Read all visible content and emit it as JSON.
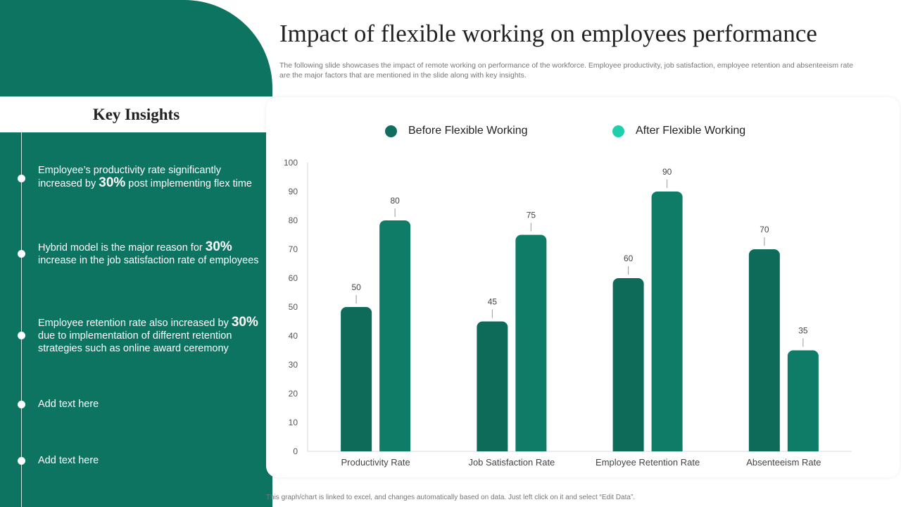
{
  "title": "Impact of flexible working on employees performance",
  "subtitle": "The following slide showcases the impact of remote working on performance of the workforce. Employee productivity, job satisfaction, employee retention and absenteeism rate are the major factors that are mentioned in the slide along with key insights.",
  "insights": {
    "heading": "Key Insights",
    "items": [
      {
        "pre": "Employee’s productivity rate significantly increased by ",
        "highlight": "30%",
        "post": " post implementing flex time"
      },
      {
        "pre": "Hybrid model is the major reason for ",
        "highlight": "30%",
        "post": " increase in the job satisfaction rate of employees"
      },
      {
        "pre": "Employee retention rate also increased by ",
        "highlight": "30%",
        "post": " due to implementation of different retention strategies such as online award ceremony"
      },
      {
        "pre": "Add text here",
        "highlight": "",
        "post": ""
      },
      {
        "pre": "Add text here",
        "highlight": "",
        "post": ""
      }
    ]
  },
  "footer": "This graph/chart is linked to excel, and changes automatically based on data. Just left click on it and select “Edit Data”.",
  "colors": {
    "panel": "#0d7461",
    "before": "#0e6b5a",
    "after": "#0e7c66",
    "legend_before": "#0f6e5d",
    "legend_after": "#1fcfab"
  },
  "chart_data": {
    "type": "bar",
    "categories": [
      "Productivity Rate",
      "Job Satisfaction Rate",
      "Employee Retention Rate",
      "Absenteeism Rate"
    ],
    "series": [
      {
        "name": "Before Flexible Working",
        "values": [
          50,
          45,
          60,
          70
        ]
      },
      {
        "name": "After Flexible Working",
        "values": [
          80,
          75,
          90,
          35
        ]
      }
    ],
    "ylim": [
      0,
      100
    ],
    "yticks": [
      0,
      10,
      20,
      30,
      40,
      50,
      60,
      70,
      80,
      90,
      100
    ],
    "legend_position": "top",
    "grid": false
  }
}
